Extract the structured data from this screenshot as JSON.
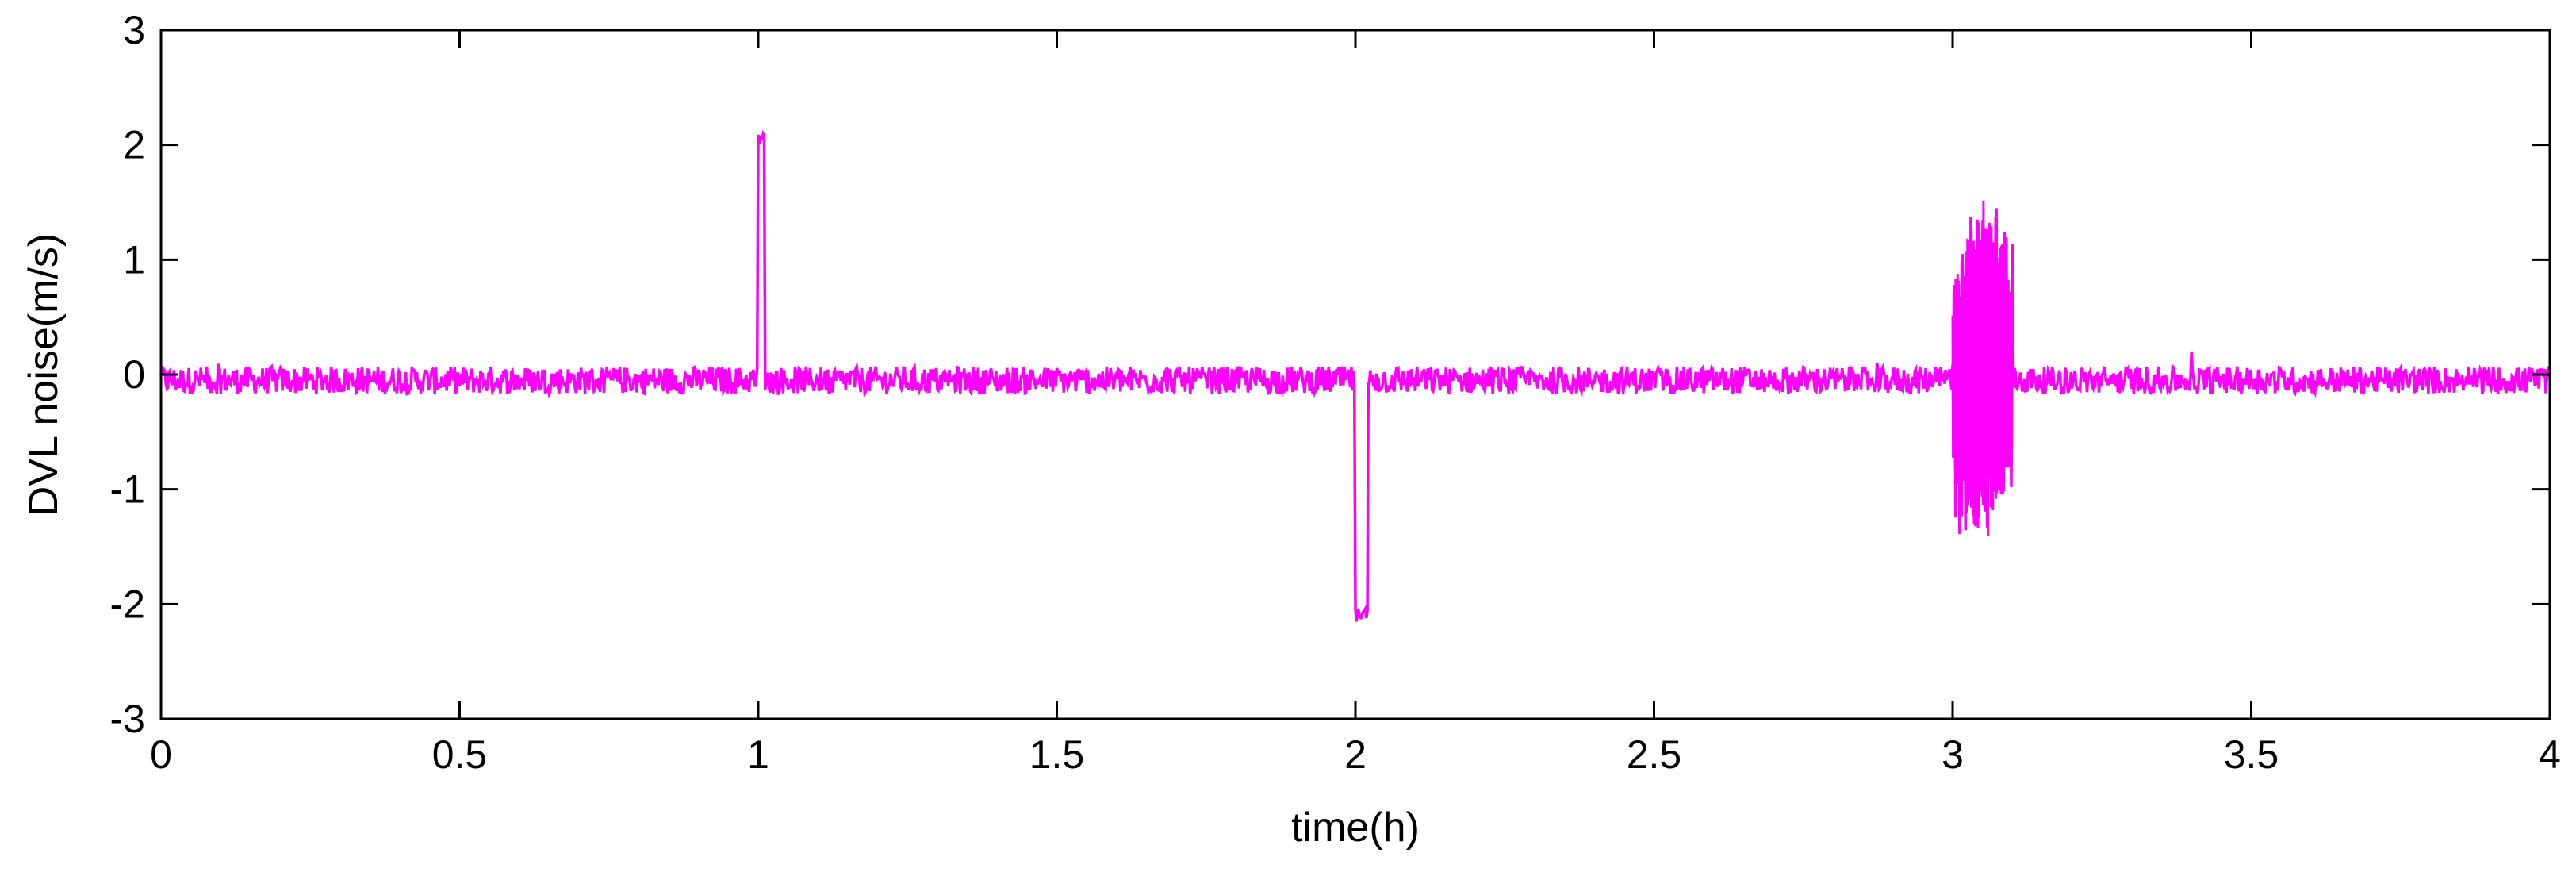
{
  "chart_data": {
    "type": "line",
    "title": "",
    "xlabel": "time(h)",
    "ylabel": "DVL  noise(m/s)",
    "xlim": [
      0,
      4
    ],
    "ylim": [
      -3,
      3
    ],
    "xticks": [
      0,
      0.5,
      1,
      1.5,
      2,
      2.5,
      3,
      3.5,
      4
    ],
    "xtick_labels": [
      "0",
      "0.5",
      "1",
      "1.5",
      "2",
      "2.5",
      "3",
      "3.5",
      "4"
    ],
    "yticks": [
      -3,
      -2,
      -1,
      0,
      1,
      2,
      3
    ],
    "ytick_labels": [
      "-3",
      "-2",
      "-1",
      "0",
      "1",
      "2",
      "3"
    ],
    "grid": false,
    "legend": "none",
    "series": [
      {
        "color": "#ff00ff",
        "baseline": {
          "x_range": [
            0,
            4
          ],
          "mean": -0.05,
          "noise_amplitude": 0.12
        },
        "events": [
          {
            "label": "positive spike",
            "x_start": 1.0,
            "x_end": 1.01,
            "value": 2.05
          },
          {
            "label": "negative spike",
            "x_start": 2.0,
            "x_end": 2.02,
            "value": -2.1
          },
          {
            "label": "oscillation burst",
            "x_start": 3.0,
            "x_end": 3.1,
            "max": 1.55,
            "min": -1.45
          }
        ]
      }
    ]
  }
}
